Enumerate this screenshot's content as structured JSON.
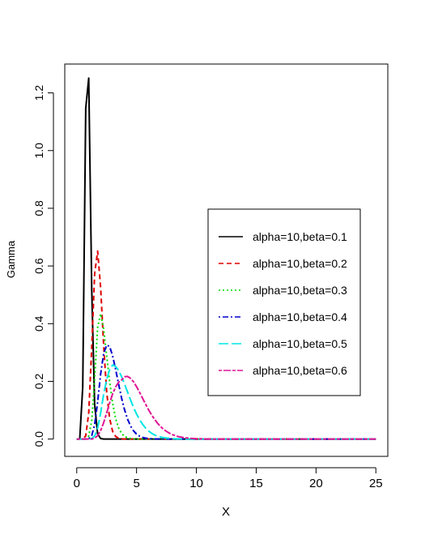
{
  "chart_data": {
    "type": "line",
    "title": "",
    "xlabel": "X",
    "ylabel": "Gamma",
    "xlim": [
      -1,
      26
    ],
    "ylim": [
      -0.06,
      1.3
    ],
    "x_ticks": [
      0,
      5,
      10,
      15,
      20,
      25
    ],
    "x_tick_labels": [
      "0",
      "5",
      "10",
      "15",
      "20",
      "25"
    ],
    "y_ticks": [
      0.0,
      0.2,
      0.4,
      0.6,
      0.8,
      1.0,
      1.2
    ],
    "y_tick_labels": [
      "0.0",
      "0.2",
      "0.4",
      "0.6",
      "0.8",
      "1.0",
      "1.2"
    ],
    "grid": false,
    "legend_position": "right",
    "x": [
      0,
      0.25,
      0.5,
      0.75,
      1,
      1.25,
      1.5,
      1.75,
      2,
      2.25,
      2.5,
      2.75,
      3,
      3.25,
      3.5,
      3.75,
      4,
      4.25,
      4.5,
      4.75,
      5,
      5.25,
      5.5,
      5.75,
      6,
      6.25,
      6.5,
      6.75,
      7,
      7.25,
      7.5,
      7.75,
      8,
      8.25,
      8.5,
      8.75,
      9,
      9.25,
      9.5,
      9.75,
      10,
      10.25,
      10.5,
      10.75,
      11,
      11.25,
      11.5,
      11.75,
      12,
      12.25,
      12.5,
      12.75,
      13,
      13.25,
      13.5,
      13.75,
      14,
      14.25,
      14.5,
      14.75,
      15,
      15.25,
      15.5,
      15.75,
      16,
      16.25,
      16.5,
      16.75,
      17,
      17.25,
      17.5,
      17.75,
      18,
      18.25,
      18.5,
      18.75,
      19,
      19.25,
      19.5,
      19.75,
      20,
      20.25,
      20.5,
      20.75,
      21,
      21.25,
      21.5,
      21.75,
      22,
      22.25,
      22.5,
      22.75,
      23,
      23.25,
      23.5,
      23.75,
      24,
      24.25,
      24.5,
      24.75,
      25
    ],
    "series": [
      {
        "name": "alpha=10,beta=0.1",
        "color": "#000000",
        "style": "solid",
        "values": [
          0,
          0.0005,
          0.1813,
          1.1472,
          1.2511,
          0.5195,
          0.1188,
          0.0179,
          0.0019,
          0.0002,
          0,
          0,
          0,
          0,
          0,
          0,
          0,
          0,
          0,
          0,
          0,
          0,
          0,
          0,
          0,
          0,
          0,
          0,
          0,
          0,
          0,
          0,
          0,
          0,
          0,
          0,
          0,
          0,
          0,
          0,
          0,
          0,
          0,
          0,
          0,
          0,
          0,
          0,
          0,
          0,
          0,
          0,
          0,
          0,
          0,
          0,
          0,
          0,
          0,
          0,
          0,
          0,
          0,
          0,
          0,
          0,
          0,
          0,
          0,
          0,
          0,
          0,
          0,
          0,
          0,
          0,
          0,
          0,
          0,
          0,
          0,
          0,
          0,
          0,
          0,
          0,
          0,
          0,
          0,
          0,
          0,
          0,
          0,
          0,
          0,
          0,
          0,
          0,
          0,
          0,
          0
        ]
      },
      {
        "name": "alpha=10,beta=0.2",
        "color": "#df0000",
        "style": "dashed",
        "values": [
          0,
          0,
          0.0003,
          0.0112,
          0.0906,
          0.3156,
          0.5736,
          0.6515,
          0.5256,
          0.3262,
          0.1651,
          0.0711,
          0.0267,
          0.009,
          0.0027,
          0.0008,
          0.0002,
          0,
          0,
          0,
          0,
          0,
          0,
          0,
          0,
          0,
          0,
          0,
          0,
          0,
          0,
          0,
          0,
          0,
          0,
          0,
          0,
          0,
          0,
          0,
          0,
          0,
          0,
          0,
          0,
          0,
          0,
          0,
          0,
          0,
          0,
          0,
          0,
          0,
          0,
          0,
          0,
          0,
          0,
          0,
          0,
          0,
          0,
          0,
          0,
          0,
          0,
          0,
          0,
          0,
          0,
          0,
          0,
          0,
          0,
          0,
          0,
          0,
          0,
          0,
          0,
          0,
          0,
          0,
          0,
          0,
          0,
          0,
          0,
          0,
          0,
          0,
          0,
          0,
          0,
          0,
          0,
          0,
          0,
          0,
          0
        ]
      },
      {
        "name": "alpha=10,beta=0.3",
        "color": "#00dd00",
        "style": "dotted",
        "values": [
          0,
          0,
          0,
          0.0006,
          0.0104,
          0.0638,
          0.2074,
          0.3874,
          0.4344,
          0.382,
          0.2903,
          0.1997,
          0.1245,
          0.0713,
          0.0384,
          0.0194,
          0.0091,
          0.0041,
          0.0018,
          0.0007,
          0.0003,
          0,
          0,
          0,
          0,
          0,
          0,
          0,
          0,
          0,
          0,
          0,
          0,
          0,
          0,
          0,
          0,
          0,
          0,
          0,
          0,
          0,
          0,
          0,
          0,
          0,
          0,
          0,
          0,
          0,
          0,
          0,
          0,
          0,
          0,
          0,
          0,
          0,
          0,
          0,
          0,
          0,
          0,
          0,
          0,
          0,
          0,
          0,
          0,
          0,
          0,
          0,
          0,
          0,
          0,
          0,
          0,
          0,
          0,
          0,
          0,
          0,
          0,
          0,
          0,
          0,
          0,
          0,
          0,
          0,
          0,
          0,
          0,
          0,
          0,
          0,
          0,
          0,
          0,
          0,
          0
        ]
      },
      {
        "name": "alpha=10,beta=0.4",
        "color": "#0000cc",
        "style": "dotdash",
        "values": [
          0,
          0,
          0,
          0,
          0.001,
          0.0117,
          0.0503,
          0.1286,
          0.2256,
          0.2956,
          0.3257,
          0.3209,
          0.2885,
          0.2419,
          0.1903,
          0.1418,
          0.1009,
          0.0686,
          0.045,
          0.0282,
          0.0172,
          0.0102,
          0.0058,
          0.0033,
          0.0018,
          0.001,
          0.0005,
          0.0003,
          0,
          0,
          0,
          0,
          0,
          0,
          0,
          0,
          0,
          0,
          0,
          0,
          0,
          0,
          0,
          0,
          0,
          0,
          0,
          0,
          0,
          0,
          0,
          0,
          0,
          0,
          0,
          0,
          0,
          0,
          0,
          0,
          0,
          0,
          0,
          0,
          0,
          0,
          0,
          0,
          0,
          0,
          0,
          0,
          0,
          0,
          0,
          0,
          0,
          0,
          0,
          0,
          0,
          0,
          0,
          0,
          0,
          0,
          0,
          0,
          0,
          0,
          0,
          0,
          0,
          0,
          0,
          0,
          0,
          0,
          0,
          0,
          0
        ]
      },
      {
        "name": "alpha=10,beta=0.5",
        "color": "#00e5e5",
        "style": "longdash",
        "values": [
          0,
          0,
          0,
          0,
          0,
          0.0019,
          0.0108,
          0.0379,
          0.0899,
          0.1555,
          0.2056,
          0.24,
          0.2566,
          0.2519,
          0.2377,
          0.2162,
          0.1902,
          0.1624,
          0.135,
          0.1095,
          0.0868,
          0.0674,
          0.0513,
          0.0384,
          0.0283,
          0.0205,
          0.0146,
          0.0103,
          0.0072,
          0.0049,
          0.0034,
          0.0023,
          0.0015,
          0.001,
          0.0007,
          0.0004,
          0,
          0,
          0,
          0,
          0,
          0,
          0,
          0,
          0,
          0,
          0,
          0,
          0,
          0,
          0,
          0,
          0,
          0,
          0,
          0,
          0,
          0,
          0,
          0,
          0,
          0,
          0,
          0,
          0,
          0,
          0,
          0,
          0,
          0,
          0,
          0,
          0,
          0,
          0,
          0,
          0,
          0,
          0,
          0,
          0,
          0,
          0,
          0,
          0,
          0,
          0,
          0,
          0,
          0,
          0,
          0,
          0,
          0,
          0,
          0,
          0,
          0,
          0,
          0,
          0
        ]
      },
      {
        "name": "alpha=10,beta=0.6",
        "color": "#e01595",
        "style": "twodash",
        "values": [
          0,
          0,
          0,
          0,
          0,
          0,
          0.0029,
          0.0119,
          0.0294,
          0.0566,
          0.0902,
          0.1251,
          0.1564,
          0.1808,
          0.1967,
          0.205,
          0.216,
          0.2171,
          0.2104,
          0.1984,
          0.1815,
          0.1621,
          0.1416,
          0.1212,
          0.1018,
          0.0843,
          0.0687,
          0.0552,
          0.0437,
          0.0342,
          0.0265,
          0.0203,
          0.0154,
          0.0116,
          0.0086,
          0.0063,
          0.0046,
          0.0034,
          0.0024,
          0.0017,
          0.0012,
          0.0009,
          0.0006,
          0.0004,
          0,
          0,
          0,
          0,
          0,
          0,
          0,
          0,
          0,
          0,
          0,
          0,
          0,
          0,
          0,
          0,
          0,
          0,
          0,
          0,
          0,
          0,
          0,
          0,
          0,
          0,
          0,
          0,
          0,
          0,
          0,
          0,
          0,
          0,
          0,
          0,
          0,
          0,
          0,
          0,
          0,
          0,
          0,
          0,
          0,
          0,
          0,
          0,
          0,
          0,
          0,
          0,
          0,
          0,
          0,
          0,
          0
        ]
      }
    ]
  }
}
